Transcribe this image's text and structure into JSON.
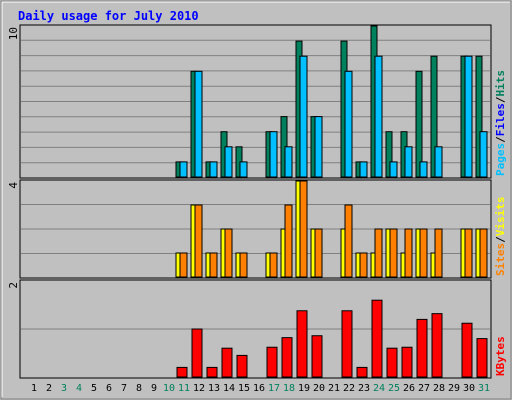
{
  "chart_data": [
    {
      "type": "bar",
      "title": "Daily usage for July 2010",
      "categories": [
        "1",
        "2",
        "3",
        "4",
        "5",
        "6",
        "7",
        "8",
        "9",
        "10",
        "11",
        "12",
        "13",
        "14",
        "15",
        "16",
        "17",
        "18",
        "19",
        "20",
        "21",
        "22",
        "23",
        "24",
        "25",
        "26",
        "27",
        "28",
        "29",
        "30",
        "31"
      ],
      "weekend_days": [
        "3",
        "4",
        "10",
        "11",
        "17",
        "18",
        "24",
        "25",
        "31"
      ],
      "ylim": [
        0,
        10
      ],
      "y_tick_label": "10",
      "legend_labels": [
        "Pages",
        "Files",
        "Hits"
      ],
      "legend_separator": "/",
      "series": [
        {
          "name": "Hits",
          "color": "#00805c",
          "values": [
            0,
            0,
            0,
            0,
            0,
            0,
            0,
            0,
            0,
            0,
            1,
            7,
            1,
            3,
            2,
            0,
            3,
            4,
            9,
            4,
            0,
            9,
            1,
            10,
            3,
            3,
            7,
            8,
            0,
            8,
            8
          ]
        },
        {
          "name": "Files",
          "color": "#00c0ff",
          "values": [
            0,
            0,
            0,
            0,
            0,
            0,
            0,
            0,
            0,
            0,
            1,
            7,
            1,
            2,
            1,
            0,
            3,
            2,
            8,
            4,
            0,
            7,
            1,
            8,
            1,
            2,
            1,
            2,
            0,
            8,
            3
          ]
        },
        {
          "name": "Pages",
          "color": "#00c0ff",
          "values": [
            0,
            0,
            0,
            0,
            0,
            0,
            0,
            0,
            0,
            0,
            0,
            0,
            0,
            0,
            0,
            0,
            0,
            0,
            0,
            0,
            0,
            0,
            0,
            0,
            0,
            0,
            0,
            0,
            0,
            0,
            0
          ]
        }
      ]
    },
    {
      "type": "bar",
      "categories": [
        "1",
        "2",
        "3",
        "4",
        "5",
        "6",
        "7",
        "8",
        "9",
        "10",
        "11",
        "12",
        "13",
        "14",
        "15",
        "16",
        "17",
        "18",
        "19",
        "20",
        "21",
        "22",
        "23",
        "24",
        "25",
        "26",
        "27",
        "28",
        "29",
        "30",
        "31"
      ],
      "ylim": [
        0,
        4
      ],
      "y_tick_label": "4",
      "legend_labels": [
        "Sites",
        "Visits"
      ],
      "legend_separator": "/",
      "series": [
        {
          "name": "Visits",
          "color": "#ffff00",
          "values": [
            0,
            0,
            0,
            0,
            0,
            0,
            0,
            0,
            0,
            0,
            1,
            3,
            1,
            2,
            1,
            0,
            1,
            2,
            4,
            2,
            0,
            2,
            1,
            1,
            2,
            1,
            2,
            1,
            0,
            2,
            2
          ]
        },
        {
          "name": "Sites",
          "color": "#ff8000",
          "values": [
            0,
            0,
            0,
            0,
            0,
            0,
            0,
            0,
            0,
            0,
            1,
            3,
            1,
            2,
            1,
            0,
            1,
            3,
            4,
            2,
            0,
            3,
            1,
            2,
            2,
            2,
            2,
            2,
            0,
            2,
            2
          ]
        }
      ]
    },
    {
      "type": "bar",
      "categories": [
        "1",
        "2",
        "3",
        "4",
        "5",
        "6",
        "7",
        "8",
        "9",
        "10",
        "11",
        "12",
        "13",
        "14",
        "15",
        "16",
        "17",
        "18",
        "19",
        "20",
        "21",
        "22",
        "23",
        "24",
        "25",
        "26",
        "27",
        "28",
        "29",
        "30",
        "31"
      ],
      "ylim": [
        0,
        2
      ],
      "y_tick_label": "2",
      "legend_labels": [
        "KBytes"
      ],
      "series": [
        {
          "name": "KBytes",
          "color": "#ff0000",
          "values": [
            0,
            0,
            0,
            0,
            0,
            0,
            0,
            0,
            0,
            0,
            0.2,
            1.0,
            0.2,
            0.6,
            0.45,
            0,
            0.62,
            0.82,
            1.38,
            0.86,
            0,
            1.38,
            0.2,
            1.6,
            0.6,
            0.62,
            1.2,
            1.32,
            0,
            1.12,
            0.8
          ]
        }
      ]
    }
  ],
  "colors": {
    "background": "#c0c0c0",
    "title": "#0000ff",
    "grid": "#808080",
    "weekday_label": "#000000",
    "weekend_label": "#00805c",
    "bar_outline": "#000000"
  }
}
